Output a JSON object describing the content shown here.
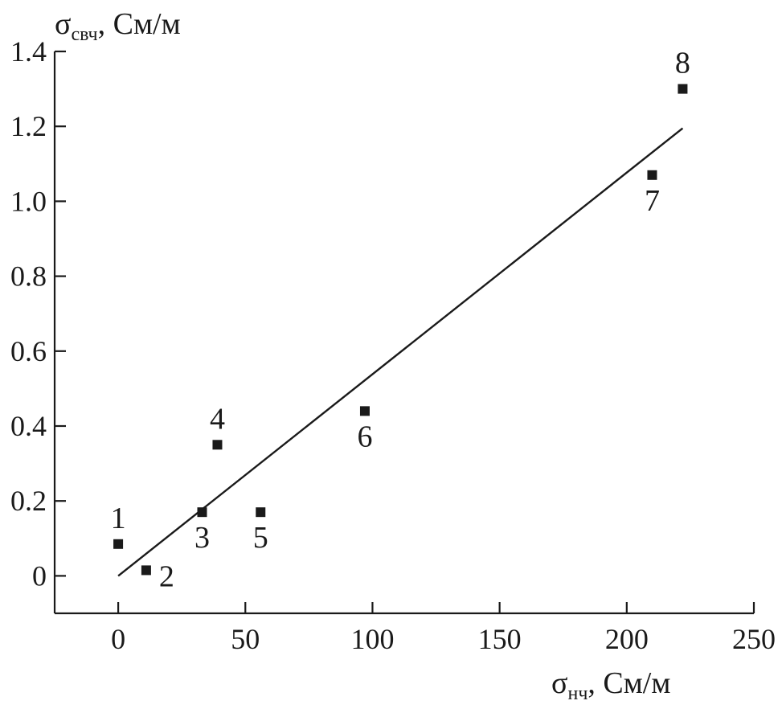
{
  "chart_data": {
    "type": "scatter",
    "title": "",
    "xlabel": {
      "symbol": "σ",
      "subscript": "нч",
      "unit": ", См/м"
    },
    "ylabel": {
      "symbol": "σ",
      "subscript": "свч",
      "unit": ", См/м"
    },
    "xlim": [
      -25,
      250
    ],
    "ylim": [
      -0.1,
      1.4
    ],
    "xticks": [
      0,
      50,
      100,
      150,
      200,
      250
    ],
    "xtick_labels": [
      "0",
      "50",
      "100",
      "150",
      "200",
      "250"
    ],
    "yticks": [
      0,
      0.2,
      0.4,
      0.6,
      0.8,
      1.0,
      1.2,
      1.4
    ],
    "ytick_labels": [
      "0",
      "0.2",
      "0.4",
      "0.6",
      "0.8",
      "1.0",
      "1.2",
      "1.4"
    ],
    "grid": false,
    "points": [
      {
        "label": "1",
        "x": 0,
        "y": 0.085,
        "label_pos": "above"
      },
      {
        "label": "2",
        "x": 11,
        "y": 0.015,
        "label_pos": "right"
      },
      {
        "label": "3",
        "x": 33,
        "y": 0.17,
        "label_pos": "below"
      },
      {
        "label": "4",
        "x": 39,
        "y": 0.35,
        "label_pos": "above"
      },
      {
        "label": "5",
        "x": 56,
        "y": 0.17,
        "label_pos": "below"
      },
      {
        "label": "6",
        "x": 97,
        "y": 0.44,
        "label_pos": "below"
      },
      {
        "label": "7",
        "x": 210,
        "y": 1.07,
        "label_pos": "below"
      },
      {
        "label": "8",
        "x": 222,
        "y": 1.3,
        "label_pos": "above"
      }
    ],
    "fit_line": {
      "x": [
        0,
        222
      ],
      "y": [
        0.0,
        1.195
      ]
    }
  }
}
